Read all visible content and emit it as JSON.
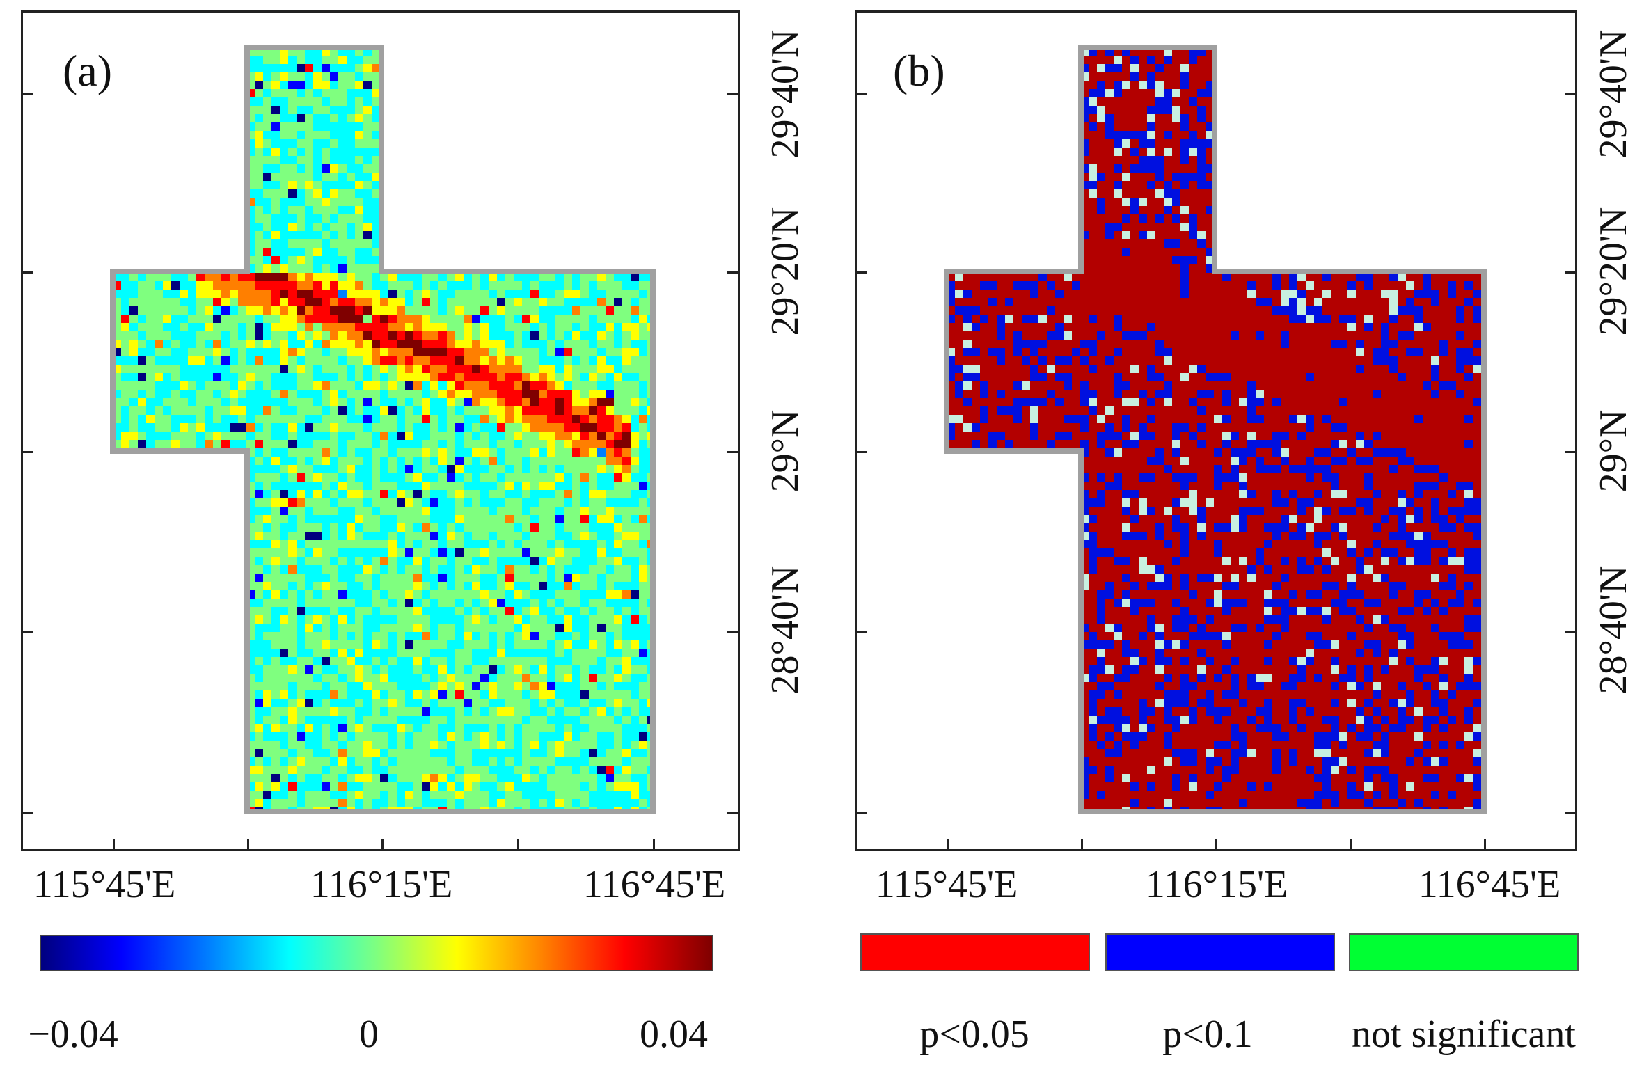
{
  "panels": {
    "a": {
      "label": "(a)",
      "lon_labels": [
        "115°45'E",
        "116°15'E",
        "116°45'E"
      ],
      "lat_labels": [
        "28°40'N",
        "29°N",
        "29°20'N",
        "29°40'N"
      ],
      "colorbar": {
        "min_label": "−0.04",
        "mid_label": "0",
        "max_label": "0.04",
        "colors": [
          "#00007f",
          "#0000ff",
          "#007fff",
          "#00ffff",
          "#7fff7f",
          "#ffff00",
          "#ff7f00",
          "#ff0000",
          "#7f0000"
        ]
      }
    },
    "b": {
      "label": "(b)",
      "lon_labels": [
        "115°45'E",
        "116°15'E",
        "116°45'E"
      ],
      "lat_labels": [
        "28°40'N",
        "29°N",
        "29°20'N",
        "29°40'N"
      ],
      "legend": [
        {
          "label": "p<0.05",
          "color": "#ff0000"
        },
        {
          "label": "p<0.1",
          "color": "#0000ff"
        },
        {
          "label": "not significant",
          "color": "#00ff33"
        }
      ]
    }
  },
  "colors": {
    "region_outline": "#a0a0a0",
    "significant_red": "#b30000",
    "p01_blue": "#0010e0",
    "not_significant_fill": "#c8f0e0"
  }
}
